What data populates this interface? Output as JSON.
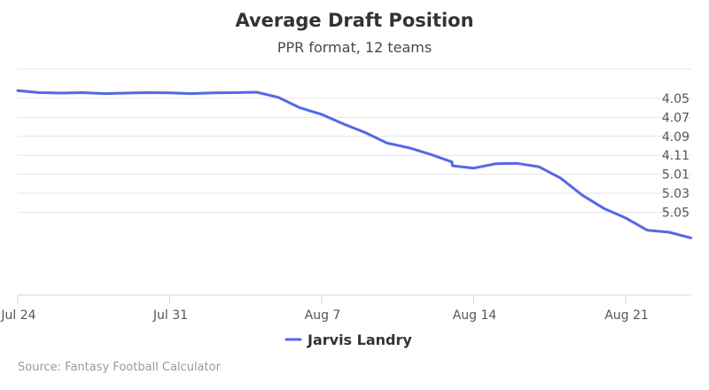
{
  "chart_data": {
    "type": "line",
    "title": "Average Draft Position",
    "subtitle": "PPR format, 12 teams",
    "credit": "Source: Fantasy Football Calculator",
    "y_ticks": [
      "4.05",
      "4.07",
      "4.09",
      "4.11",
      "5.01",
      "5.03",
      "5.05"
    ],
    "x_ticks": [
      {
        "label": "Jul 24",
        "day": 0
      },
      {
        "label": "Jul 31",
        "day": 7
      },
      {
        "label": "Aug 7",
        "day": 14
      },
      {
        "label": "Aug 14",
        "day": 21
      },
      {
        "label": "Aug 21",
        "day": 28
      }
    ],
    "x_range_days": [
      0,
      31
    ],
    "y_range_picks": [
      40,
      54.5
    ],
    "grid": true,
    "legend_position": "bottom-center",
    "series": [
      {
        "name": "Jarvis Landry",
        "color": "#5468e6",
        "points": [
          {
            "date": "Jul 24",
            "pick": 40.2
          },
          {
            "date": "Jul 25",
            "pick": 40.4
          },
          {
            "date": "Jul 26",
            "pick": 40.45
          },
          {
            "date": "Jul 27",
            "pick": 40.4
          },
          {
            "date": "Jul 28",
            "pick": 40.5
          },
          {
            "date": "Jul 29",
            "pick": 40.45
          },
          {
            "date": "Jul 30",
            "pick": 40.4
          },
          {
            "date": "Jul 31",
            "pick": 40.42
          },
          {
            "date": "Aug 1",
            "pick": 40.5
          },
          {
            "date": "Aug 2",
            "pick": 40.42
          },
          {
            "date": "Aug 3",
            "pick": 40.4
          },
          {
            "date": "Aug 4",
            "pick": 40.35
          },
          {
            "date": "Aug 5",
            "pick": 40.9
          },
          {
            "date": "Aug 6",
            "pick": 42.0
          },
          {
            "date": "Aug 7",
            "pick": 42.7
          },
          {
            "date": "Aug 8",
            "pick": 43.7
          },
          {
            "date": "Aug 9",
            "pick": 44.6
          },
          {
            "date": "Aug 10",
            "pick": 45.7
          },
          {
            "date": "Aug 11",
            "pick": 46.2
          },
          {
            "date": "Aug 12",
            "pick": 46.9
          },
          {
            "date": "Aug 13",
            "pick": 47.7
          },
          {
            "date": "Aug 13",
            "pick": 48.1
          },
          {
            "date": "Aug 14",
            "pick": 48.35
          },
          {
            "date": "Aug 15",
            "pick": 47.9
          },
          {
            "date": "Aug 16",
            "pick": 47.85
          },
          {
            "date": "Aug 17",
            "pick": 48.2
          },
          {
            "date": "Aug 18",
            "pick": 49.4
          },
          {
            "date": "Aug 19",
            "pick": 51.2
          },
          {
            "date": "Aug 20",
            "pick": 52.6
          },
          {
            "date": "Aug 21",
            "pick": 53.6
          },
          {
            "date": "Aug 22",
            "pick": 54.9
          },
          {
            "date": "Aug 23",
            "pick": 55.1
          },
          {
            "date": "Aug 24",
            "pick": 55.7
          }
        ]
      }
    ]
  }
}
